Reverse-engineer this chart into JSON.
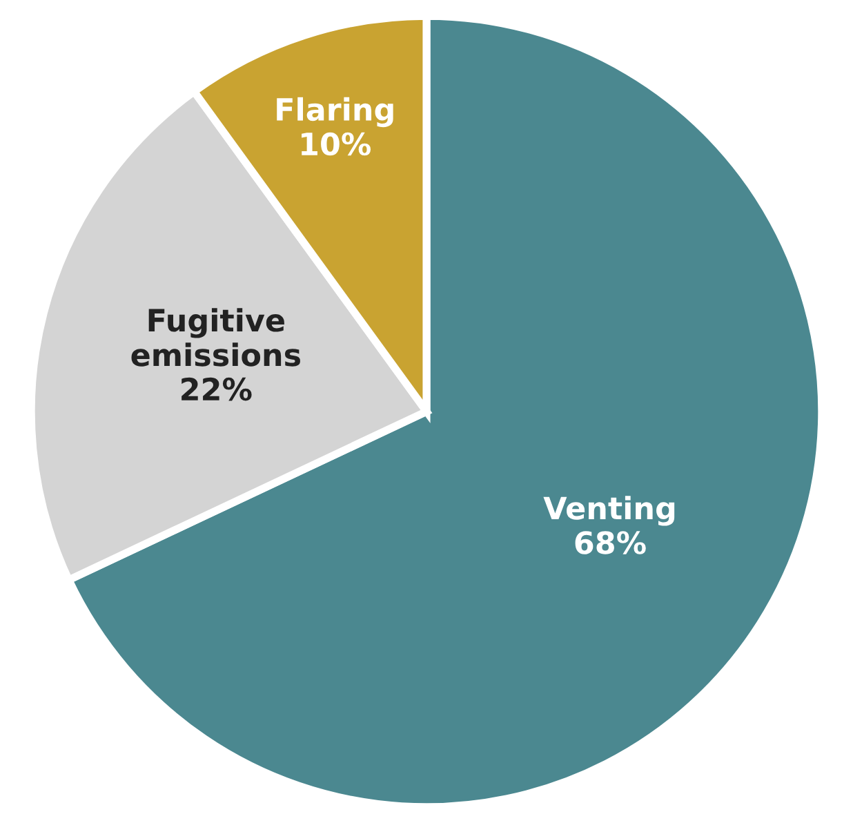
{
  "chart_data": {
    "type": "pie",
    "categories": [
      "Venting",
      "Fugitive emissions",
      "Flaring"
    ],
    "values": [
      68,
      22,
      10
    ],
    "value_labels": [
      "68%",
      "22%",
      "10%"
    ],
    "colors": [
      "#4b8890",
      "#d4d4d4",
      "#c9a331"
    ]
  }
}
